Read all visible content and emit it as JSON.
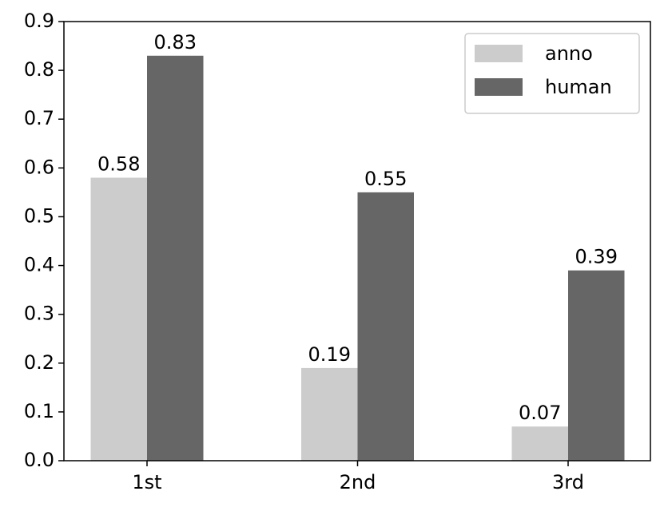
{
  "chart_data": {
    "type": "bar",
    "categories": [
      "1st",
      "2nd",
      "3rd"
    ],
    "series": [
      {
        "name": "anno",
        "color": "#cccccc",
        "values": [
          0.58,
          0.19,
          0.07
        ]
      },
      {
        "name": "human",
        "color": "#666666",
        "values": [
          0.83,
          0.55,
          0.39
        ]
      }
    ],
    "ylim": [
      0,
      0.9
    ],
    "yticks": [
      {
        "value": 0,
        "label": "0.0"
      },
      0.1,
      0.2,
      0.3,
      0.4,
      0.5,
      0.6,
      0.7,
      0.8,
      0.9
    ],
    "grid": false,
    "legend": "upper right"
  }
}
